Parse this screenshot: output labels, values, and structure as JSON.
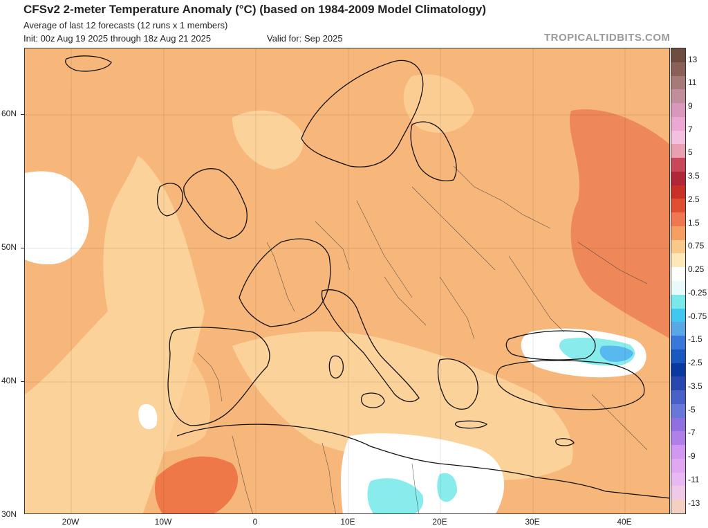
{
  "header": {
    "title": "CFSv2 2-meter Temperature Anomaly (°C) (based on 1984-2009 Model Climatology)",
    "subtitle": "Average of last 12 forecasts (12 runs x 1 members)",
    "init": "Init: 00z Aug 19 2025 through 18z Aug 21 2025",
    "valid": "Valid for: Sep 2025",
    "brand": "TROPICALTIDBITS.COM"
  },
  "axes": {
    "lat_labels": [
      "60N",
      "50N",
      "40N",
      "30N"
    ],
    "lon_labels": [
      "20W",
      "10W",
      "0",
      "10E",
      "20E",
      "30E",
      "40E"
    ]
  },
  "colorbar": {
    "labels": [
      "13",
      "11",
      "9",
      "7",
      "5",
      "3.5",
      "2.5",
      "1.5",
      "0.75",
      "0.25",
      "-0.25",
      "-0.75",
      "-1.5",
      "-2.5",
      "-3.5",
      "-5",
      "-7",
      "-9",
      "-11",
      "-13"
    ],
    "colors": [
      "#6e4c3f",
      "#8a6058",
      "#a57a78",
      "#c08f9b",
      "#d898bd",
      "#eaa8d2",
      "#f4c0e0",
      "#e8a0b0",
      "#c8485a",
      "#b02838",
      "#c83028",
      "#e05030",
      "#f07850",
      "#f5a060",
      "#fac888",
      "#fde8b8",
      "#ffffff",
      "#e8fafa",
      "#78e8e8",
      "#40c8f0",
      "#58a8e8",
      "#3878d8",
      "#1858c0",
      "#0838a0",
      "#2848b0",
      "#4860c8",
      "#6878d8",
      "#9070e0",
      "#b080e8",
      "#d098f0",
      "#e0a8f0",
      "#e8b8f0",
      "#f0c8e8",
      "#f4d0c0"
    ]
  },
  "map": {
    "palette": {
      "ocean": "#fbd8a0",
      "land": "#f8b878",
      "warm": "#f5a060",
      "hot": "#ee7848",
      "mild": "#fde0a8",
      "neutral": "#ffffff",
      "cool": "#88ecec",
      "cold": "#58b8f0",
      "coast": "#111111",
      "borders": "#333333"
    }
  }
}
